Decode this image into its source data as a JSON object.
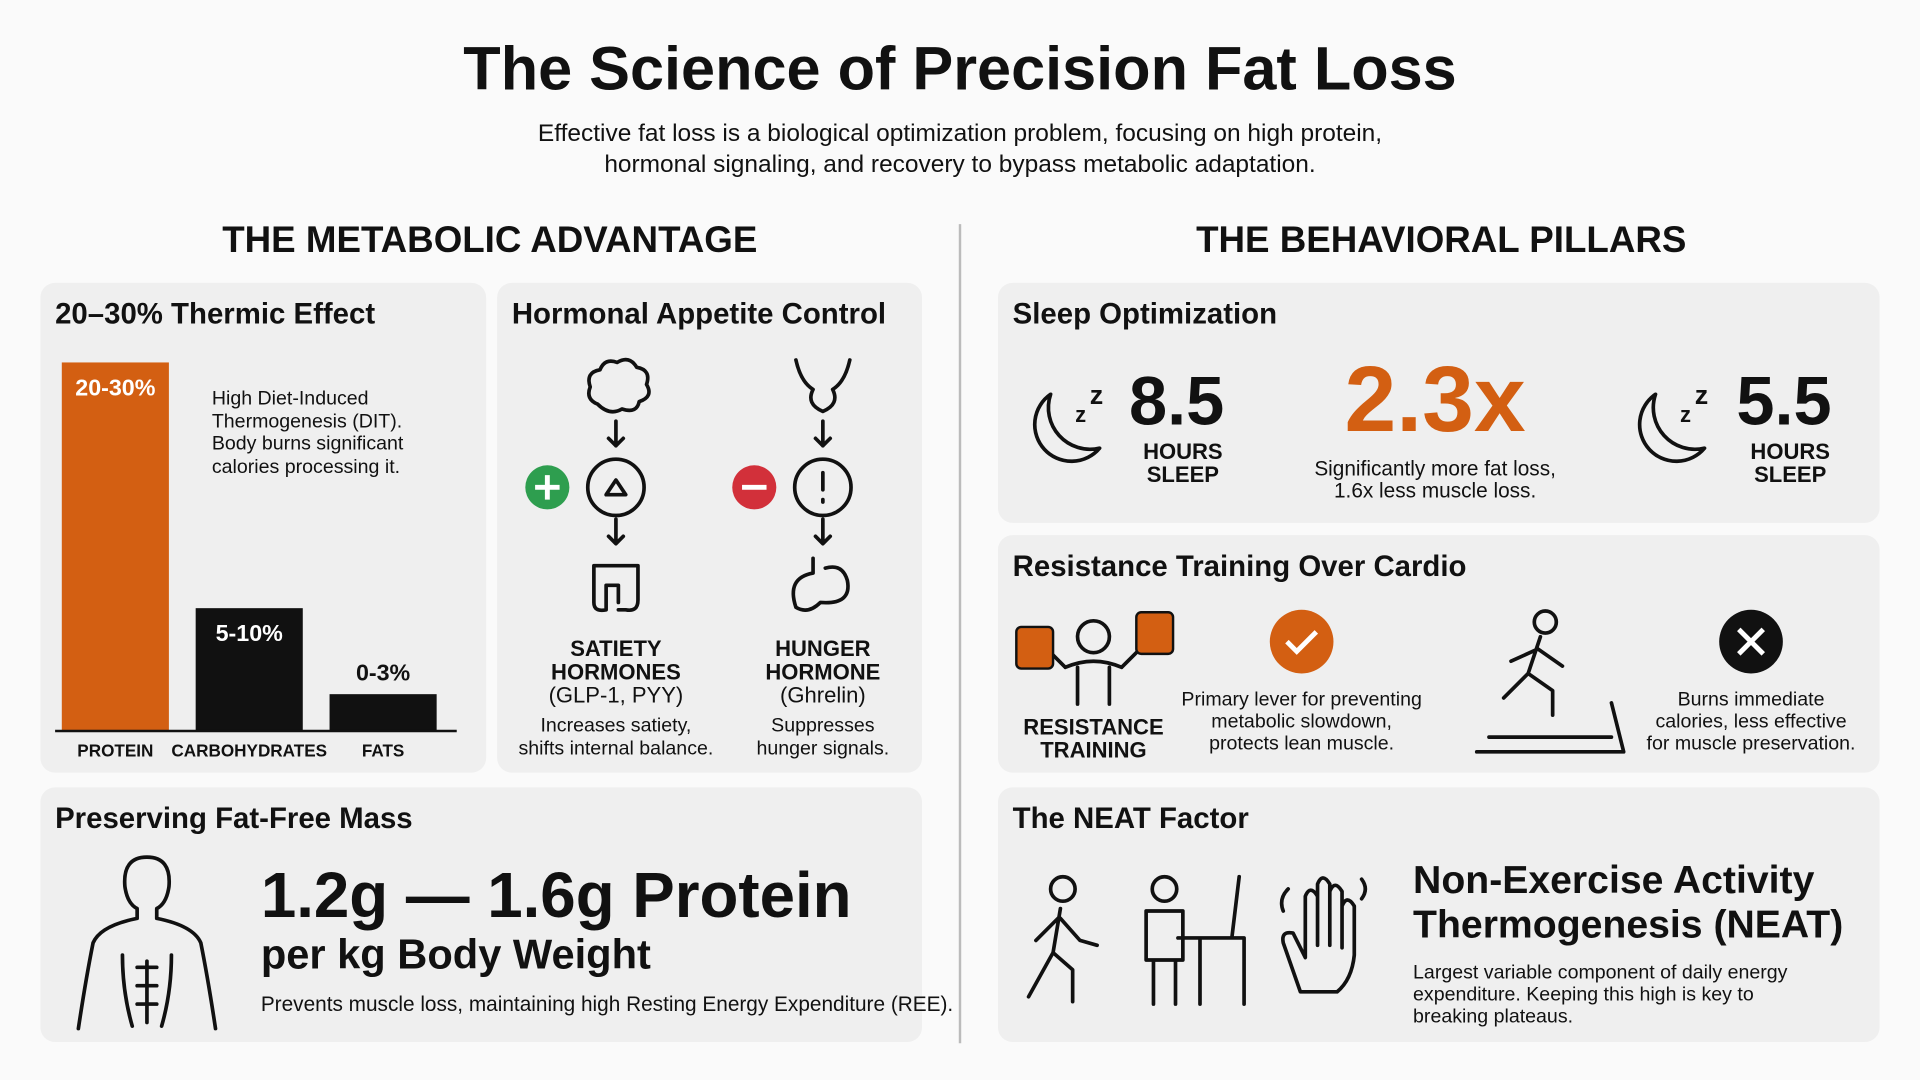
{
  "header": {
    "title": "The Science of Precision Fat Loss",
    "subtitle": [
      "Effective fat loss is a biological optimization problem, focusing on high protein,",
      "hormonal signaling, and recovery to bypass metabolic adaptation."
    ]
  },
  "left_section": {
    "heading": "THE METABOLIC ADVANTAGE"
  },
  "chart_data": {
    "type": "bar",
    "title": "20–30% Thermic Effect",
    "categories": [
      "PROTEIN",
      "CARBOHYDRATES",
      "FATS"
    ],
    "values": [
      30,
      10,
      3
    ],
    "value_labels": [
      "20-30%",
      "5-10%",
      "0-3%"
    ],
    "colors": [
      "#d35f12",
      "#111111",
      "#111111"
    ],
    "ylim": [
      0,
      30
    ],
    "annotation": [
      "High Diet-Induced",
      "Thermogenesis (DIT).",
      "Body burns significant",
      "calories processing it."
    ]
  },
  "hormonal": {
    "title": "Hormonal Appetite Control",
    "satiety": {
      "label": [
        "SATIETY",
        "HORMONES",
        "(GLP-1, PYY)"
      ],
      "caption": [
        "Increases satiety,",
        "shifts internal balance."
      ]
    },
    "hunger": {
      "label": [
        "HUNGER",
        "HORMONE",
        "(Ghrelin)"
      ],
      "caption": [
        "Suppresses",
        "hunger signals."
      ]
    }
  },
  "fat_free_mass": {
    "title": "Preserving Fat-Free Mass",
    "headline": "1.2g — 1.6g Protein",
    "subheadline": "per kg Body Weight",
    "caption": "Prevents muscle loss, maintaining high Resting Energy Expenditure (REE)."
  },
  "right_section": {
    "heading": "THE BEHAVIORAL PILLARS"
  },
  "sleep": {
    "title": "Sleep Optimization",
    "left": {
      "value": "8.5",
      "unit": [
        "HOURS",
        "SLEEP"
      ]
    },
    "ratio": "2.3x",
    "ratio_caption": [
      "Significantly more fat loss,",
      "1.6x less muscle loss."
    ],
    "right": {
      "value": "5.5",
      "unit": [
        "HOURS",
        "SLEEP"
      ]
    }
  },
  "resistance": {
    "title": "Resistance Training Over Cardio",
    "training_label": [
      "RESISTANCE",
      "TRAINING"
    ],
    "pro_caption": [
      "Primary lever for preventing",
      "metabolic slowdown,",
      "protects lean muscle."
    ],
    "con_caption": [
      "Burns immediate",
      "calories, less effective",
      "for muscle preservation."
    ]
  },
  "neat": {
    "title": "The NEAT Factor",
    "heading": [
      "Non-Exercise Activity",
      "Thermogenesis (NEAT)"
    ],
    "caption": [
      "Largest variable component of daily energy",
      "expenditure. Keeping this high is key to",
      "breaking plateaus."
    ]
  }
}
